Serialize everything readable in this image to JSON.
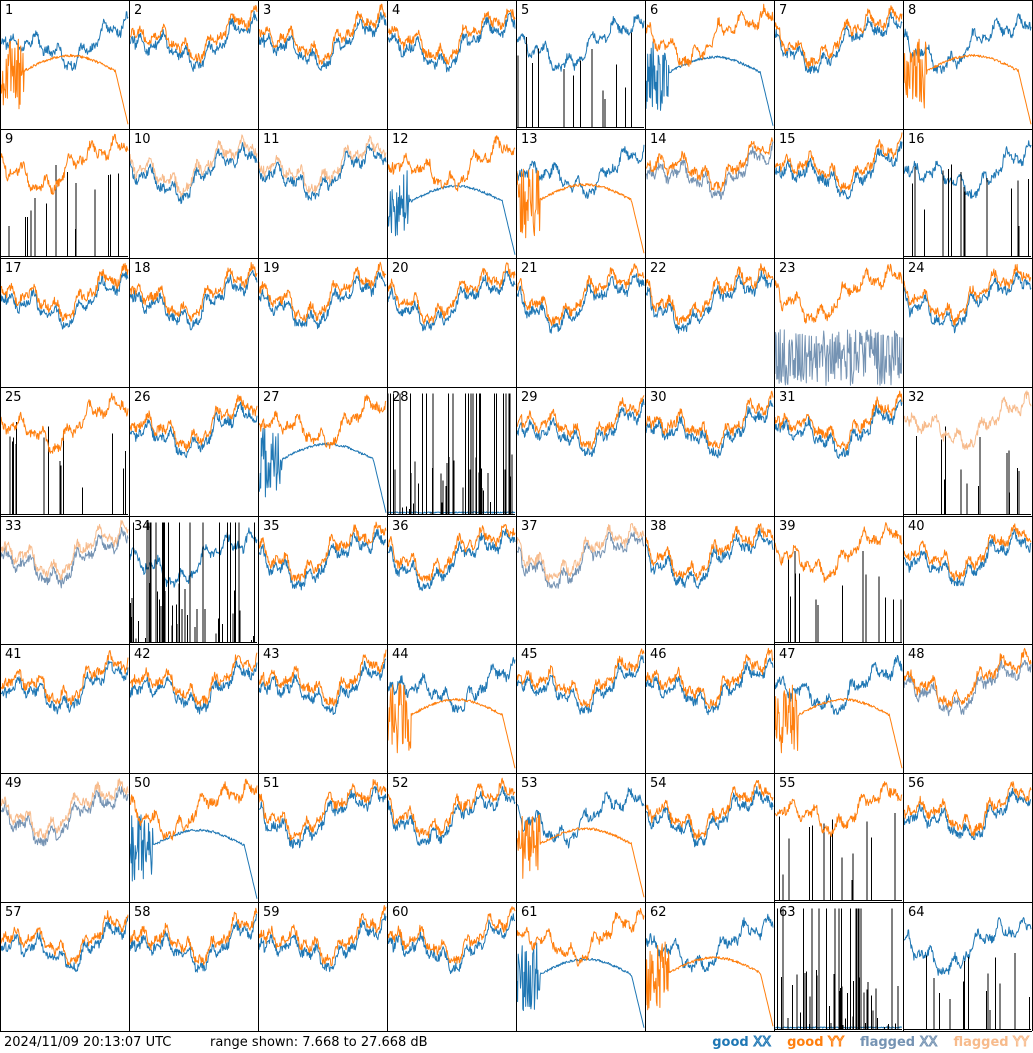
{
  "footer": {
    "timestamp": "2024/11/09 20:13:07 UTC",
    "range_text": "range shown: 7.668 to 27.668 dB"
  },
  "legend": [
    {
      "prefix": "good ",
      "pol": "XX",
      "color": "#1f77b4"
    },
    {
      "prefix": "good ",
      "pol": "YY",
      "color": "#ff7f0e"
    },
    {
      "prefix": "flagged ",
      "pol": "XX",
      "color": "#7593b3"
    },
    {
      "prefix": "flagged ",
      "pol": "YY",
      "color": "#f7bb8c"
    }
  ],
  "colors": {
    "good_xx": "#1f77b4",
    "good_yy": "#ff7f0e",
    "flagged_xx": "#7593b3",
    "flagged_yy": "#f7bb8c"
  },
  "chart_data": {
    "type": "line",
    "title": "",
    "ylim_db": [
      7.668,
      27.668
    ],
    "grid_rows": 8,
    "grid_cols": 8,
    "series_names": [
      "good XX",
      "good YY",
      "flagged XX",
      "flagged YY"
    ],
    "panels": [
      {
        "id": "1",
        "xx": {
          "status": "good",
          "shape": "normal"
        },
        "yy": {
          "status": "good",
          "shape": "broken"
        }
      },
      {
        "id": "2",
        "xx": {
          "status": "good",
          "shape": "normal"
        },
        "yy": {
          "status": "good",
          "shape": "normal"
        }
      },
      {
        "id": "3",
        "xx": {
          "status": "good",
          "shape": "normal"
        },
        "yy": {
          "status": "good",
          "shape": "normal"
        }
      },
      {
        "id": "4",
        "xx": {
          "status": "good",
          "shape": "normal"
        },
        "yy": {
          "status": "good",
          "shape": "normal"
        }
      },
      {
        "id": "5",
        "xx": {
          "status": "good",
          "shape": "normal"
        },
        "yy": {
          "status": "flagged",
          "shape": "spikes"
        }
      },
      {
        "id": "6",
        "xx": {
          "status": "good",
          "shape": "broken"
        },
        "yy": {
          "status": "good",
          "shape": "normal"
        }
      },
      {
        "id": "7",
        "xx": {
          "status": "good",
          "shape": "normal"
        },
        "yy": {
          "status": "good",
          "shape": "normal"
        }
      },
      {
        "id": "8",
        "xx": {
          "status": "good",
          "shape": "normal"
        },
        "yy": {
          "status": "good",
          "shape": "broken"
        }
      },
      {
        "id": "9",
        "xx": {
          "status": "flagged",
          "shape": "spikes"
        },
        "yy": {
          "status": "good",
          "shape": "normal"
        }
      },
      {
        "id": "10",
        "xx": {
          "status": "good",
          "shape": "normal"
        },
        "yy": {
          "status": "flagged",
          "shape": "normal"
        }
      },
      {
        "id": "11",
        "xx": {
          "status": "good",
          "shape": "normal"
        },
        "yy": {
          "status": "flagged",
          "shape": "normal"
        }
      },
      {
        "id": "12",
        "xx": {
          "status": "good",
          "shape": "broken"
        },
        "yy": {
          "status": "good",
          "shape": "normal"
        }
      },
      {
        "id": "13",
        "xx": {
          "status": "good",
          "shape": "normal"
        },
        "yy": {
          "status": "good",
          "shape": "broken"
        }
      },
      {
        "id": "14",
        "xx": {
          "status": "flagged",
          "shape": "normal"
        },
        "yy": {
          "status": "good",
          "shape": "normal"
        }
      },
      {
        "id": "15",
        "xx": {
          "status": "good",
          "shape": "normal"
        },
        "yy": {
          "status": "good",
          "shape": "normal"
        }
      },
      {
        "id": "16",
        "xx": {
          "status": "good",
          "shape": "normal"
        },
        "yy": {
          "status": "flagged",
          "shape": "spikes"
        }
      },
      {
        "id": "17",
        "xx": {
          "status": "good",
          "shape": "normal"
        },
        "yy": {
          "status": "good",
          "shape": "normal"
        }
      },
      {
        "id": "18",
        "xx": {
          "status": "good",
          "shape": "normal"
        },
        "yy": {
          "status": "good",
          "shape": "normal"
        }
      },
      {
        "id": "19",
        "xx": {
          "status": "good",
          "shape": "normal"
        },
        "yy": {
          "status": "good",
          "shape": "normal"
        }
      },
      {
        "id": "20",
        "xx": {
          "status": "good",
          "shape": "normal"
        },
        "yy": {
          "status": "good",
          "shape": "normal"
        }
      },
      {
        "id": "21",
        "xx": {
          "status": "good",
          "shape": "normal"
        },
        "yy": {
          "status": "good",
          "shape": "normal"
        }
      },
      {
        "id": "22",
        "xx": {
          "status": "good",
          "shape": "normal"
        },
        "yy": {
          "status": "good",
          "shape": "normal"
        }
      },
      {
        "id": "23",
        "xx": {
          "status": "flagged",
          "shape": "noisy"
        },
        "yy": {
          "status": "good",
          "shape": "normal"
        }
      },
      {
        "id": "24",
        "xx": {
          "status": "good",
          "shape": "normal"
        },
        "yy": {
          "status": "good",
          "shape": "normal"
        }
      },
      {
        "id": "25",
        "xx": {
          "status": "flagged",
          "shape": "spikes"
        },
        "yy": {
          "status": "good",
          "shape": "normal"
        }
      },
      {
        "id": "26",
        "xx": {
          "status": "good",
          "shape": "normal"
        },
        "yy": {
          "status": "good",
          "shape": "normal"
        }
      },
      {
        "id": "27",
        "xx": {
          "status": "good",
          "shape": "broken"
        },
        "yy": {
          "status": "good",
          "shape": "normal"
        }
      },
      {
        "id": "28",
        "xx": {
          "status": "good",
          "shape": "flat"
        },
        "yy": {
          "status": "good",
          "shape": "spikes"
        }
      },
      {
        "id": "29",
        "xx": {
          "status": "good",
          "shape": "normal"
        },
        "yy": {
          "status": "good",
          "shape": "normal"
        }
      },
      {
        "id": "30",
        "xx": {
          "status": "good",
          "shape": "normal"
        },
        "yy": {
          "status": "good",
          "shape": "normal"
        }
      },
      {
        "id": "31",
        "xx": {
          "status": "good",
          "shape": "normal"
        },
        "yy": {
          "status": "good",
          "shape": "normal"
        }
      },
      {
        "id": "32",
        "xx": {
          "status": "flagged",
          "shape": "spikes"
        },
        "yy": {
          "status": "flagged",
          "shape": "normal"
        }
      },
      {
        "id": "33",
        "xx": {
          "status": "flagged",
          "shape": "normal"
        },
        "yy": {
          "status": "flagged",
          "shape": "normal"
        }
      },
      {
        "id": "34",
        "xx": {
          "status": "good",
          "shape": "normal"
        },
        "yy": {
          "status": "good",
          "shape": "spikes"
        }
      },
      {
        "id": "35",
        "xx": {
          "status": "good",
          "shape": "normal"
        },
        "yy": {
          "status": "good",
          "shape": "normal"
        }
      },
      {
        "id": "36",
        "xx": {
          "status": "good",
          "shape": "normal"
        },
        "yy": {
          "status": "good",
          "shape": "normal"
        }
      },
      {
        "id": "37",
        "xx": {
          "status": "flagged",
          "shape": "normal"
        },
        "yy": {
          "status": "flagged",
          "shape": "normal"
        }
      },
      {
        "id": "38",
        "xx": {
          "status": "good",
          "shape": "normal"
        },
        "yy": {
          "status": "good",
          "shape": "normal"
        }
      },
      {
        "id": "39",
        "xx": {
          "status": "good",
          "shape": "spikes"
        },
        "yy": {
          "status": "good",
          "shape": "normal"
        }
      },
      {
        "id": "40",
        "xx": {
          "status": "good",
          "shape": "normal"
        },
        "yy": {
          "status": "good",
          "shape": "normal"
        }
      },
      {
        "id": "41",
        "xx": {
          "status": "good",
          "shape": "normal"
        },
        "yy": {
          "status": "good",
          "shape": "normal"
        }
      },
      {
        "id": "42",
        "xx": {
          "status": "good",
          "shape": "normal"
        },
        "yy": {
          "status": "good",
          "shape": "normal"
        }
      },
      {
        "id": "43",
        "xx": {
          "status": "good",
          "shape": "normal"
        },
        "yy": {
          "status": "good",
          "shape": "normal"
        }
      },
      {
        "id": "44",
        "xx": {
          "status": "good",
          "shape": "normal"
        },
        "yy": {
          "status": "good",
          "shape": "broken"
        }
      },
      {
        "id": "45",
        "xx": {
          "status": "good",
          "shape": "normal"
        },
        "yy": {
          "status": "good",
          "shape": "normal"
        }
      },
      {
        "id": "46",
        "xx": {
          "status": "good",
          "shape": "normal"
        },
        "yy": {
          "status": "good",
          "shape": "normal"
        }
      },
      {
        "id": "47",
        "xx": {
          "status": "good",
          "shape": "normal"
        },
        "yy": {
          "status": "good",
          "shape": "broken"
        }
      },
      {
        "id": "48",
        "xx": {
          "status": "flagged",
          "shape": "normal"
        },
        "yy": {
          "status": "good",
          "shape": "normal"
        }
      },
      {
        "id": "49",
        "xx": {
          "status": "flagged",
          "shape": "normal"
        },
        "yy": {
          "status": "flagged",
          "shape": "normal"
        }
      },
      {
        "id": "50",
        "xx": {
          "status": "good",
          "shape": "broken"
        },
        "yy": {
          "status": "good",
          "shape": "normal"
        }
      },
      {
        "id": "51",
        "xx": {
          "status": "good",
          "shape": "normal"
        },
        "yy": {
          "status": "good",
          "shape": "normal"
        }
      },
      {
        "id": "52",
        "xx": {
          "status": "good",
          "shape": "normal"
        },
        "yy": {
          "status": "good",
          "shape": "normal"
        }
      },
      {
        "id": "53",
        "xx": {
          "status": "good",
          "shape": "normal"
        },
        "yy": {
          "status": "good",
          "shape": "broken"
        }
      },
      {
        "id": "54",
        "xx": {
          "status": "good",
          "shape": "normal"
        },
        "yy": {
          "status": "good",
          "shape": "normal"
        }
      },
      {
        "id": "55",
        "xx": {
          "status": "good",
          "shape": "spikes"
        },
        "yy": {
          "status": "good",
          "shape": "normal"
        }
      },
      {
        "id": "56",
        "xx": {
          "status": "good",
          "shape": "normal"
        },
        "yy": {
          "status": "good",
          "shape": "normal"
        }
      },
      {
        "id": "57",
        "xx": {
          "status": "good",
          "shape": "normal"
        },
        "yy": {
          "status": "good",
          "shape": "normal"
        }
      },
      {
        "id": "58",
        "xx": {
          "status": "good",
          "shape": "normal"
        },
        "yy": {
          "status": "good",
          "shape": "normal"
        }
      },
      {
        "id": "59",
        "xx": {
          "status": "good",
          "shape": "normal"
        },
        "yy": {
          "status": "good",
          "shape": "normal"
        }
      },
      {
        "id": "60",
        "xx": {
          "status": "good",
          "shape": "normal"
        },
        "yy": {
          "status": "good",
          "shape": "normal"
        }
      },
      {
        "id": "61",
        "xx": {
          "status": "good",
          "shape": "broken"
        },
        "yy": {
          "status": "good",
          "shape": "normal"
        }
      },
      {
        "id": "62",
        "xx": {
          "status": "good",
          "shape": "normal"
        },
        "yy": {
          "status": "good",
          "shape": "broken"
        }
      },
      {
        "id": "63",
        "xx": {
          "status": "good",
          "shape": "flat"
        },
        "yy": {
          "status": "good",
          "shape": "spikes"
        }
      },
      {
        "id": "64",
        "xx": {
          "status": "good",
          "shape": "normal"
        },
        "yy": {
          "status": "flagged",
          "shape": "spikes"
        }
      }
    ]
  }
}
